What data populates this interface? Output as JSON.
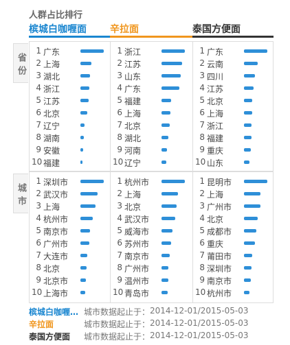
{
  "title": "人群占比排行",
  "tabs": [
    {
      "name": "槟城白咖喱面",
      "color": "#1a86d0"
    },
    {
      "name": "辛拉面",
      "color": "#f0961e"
    },
    {
      "name": "泰国方便面",
      "color": "#333333"
    }
  ],
  "bar_color": "#2e8fd8",
  "ranks": [
    1,
    2,
    3,
    4,
    5,
    6,
    7,
    8,
    9,
    10
  ],
  "sections": [
    {
      "label": "省份",
      "columns": [
        {
          "items": [
            "广东",
            "上海",
            "湖北",
            "浙江",
            "江苏",
            "北京",
            "辽宁",
            "湖南",
            "安徽",
            "福建"
          ],
          "values": [
            34,
            16,
            14,
            13,
            12,
            10,
            6,
            5,
            4,
            3
          ]
        },
        {
          "items": [
            "浙江",
            "江苏",
            "山东",
            "广东",
            "福建",
            "上海",
            "北京",
            "湖北",
            "河南",
            "辽宁"
          ],
          "values": [
            34,
            30,
            28,
            26,
            14,
            13,
            12,
            10,
            8,
            7
          ]
        },
        {
          "items": [
            "广东",
            "云南",
            "四川",
            "江苏",
            "北京",
            "上海",
            "浙江",
            "福建",
            "重庆",
            "山东"
          ],
          "values": [
            34,
            20,
            16,
            14,
            12,
            12,
            11,
            11,
            10,
            8
          ]
        }
      ]
    },
    {
      "label": "城市",
      "columns": [
        {
          "items": [
            "深圳市",
            "武汉市",
            "上海",
            "杭州市",
            "南京市",
            "广州市",
            "大连市",
            "北京",
            "北京市",
            "上海市"
          ],
          "values": [
            34,
            25,
            22,
            18,
            14,
            13,
            10,
            9,
            8,
            7
          ]
        },
        {
          "items": [
            "杭州市",
            "上海",
            "北京",
            "武汉市",
            "威海市",
            "苏州市",
            "南京市",
            "广州市",
            "温州市",
            "青岛市"
          ],
          "values": [
            34,
            24,
            22,
            20,
            16,
            14,
            12,
            10,
            10,
            9
          ]
        },
        {
          "items": [
            "昆明市",
            "上海",
            "广州市",
            "北京",
            "成都市",
            "重庆",
            "莆田市",
            "深圳市",
            "南京市",
            "杭州市"
          ],
          "values": [
            34,
            24,
            24,
            20,
            18,
            16,
            12,
            11,
            10,
            8
          ]
        }
      ]
    }
  ],
  "footer": [
    {
      "name": "槟城白咖喱…",
      "label": "城市数据起止于：",
      "period": "2014-12-01/2015-05-03"
    },
    {
      "name": "辛拉面",
      "label": "城市数据起止于：",
      "period": "2014-12-01/2015-05-03"
    },
    {
      "name": "泰国方便面",
      "label": "城市数据起止于：",
      "period": "2014-12-01/2015-05-03"
    }
  ]
}
